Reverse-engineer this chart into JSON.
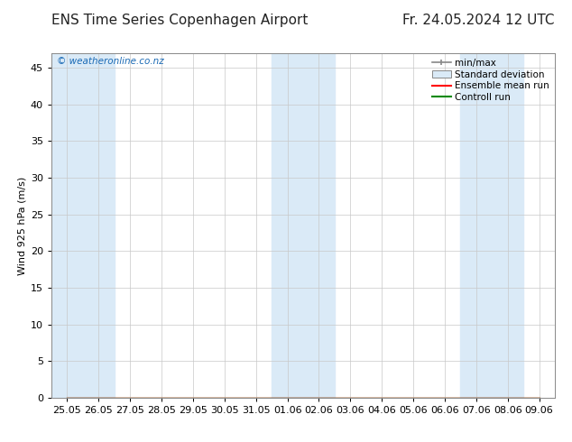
{
  "title_left": "ENS Time Series Copenhagen Airport",
  "title_right": "Fr. 24.05.2024 12 UTC",
  "ylabel": "Wind 925 hPa (m/s)",
  "watermark": "© weatheronline.co.nz",
  "ylim": [
    0,
    47
  ],
  "yticks": [
    0,
    5,
    10,
    15,
    20,
    25,
    30,
    35,
    40,
    45
  ],
  "background_color": "#ffffff",
  "plot_bg_color": "#ffffff",
  "band_color": "#daeaf7",
  "xtick_labels": [
    "25.05",
    "26.05",
    "27.05",
    "28.05",
    "29.05",
    "30.05",
    "31.05",
    "01.06",
    "02.06",
    "03.06",
    "04.06",
    "05.06",
    "06.06",
    "07.06",
    "08.06",
    "09.06"
  ],
  "shaded_indices": [
    0,
    1,
    7,
    8,
    13,
    14
  ],
  "legend_labels": [
    "min/max",
    "Standard deviation",
    "Ensemble mean run",
    "Controll run"
  ],
  "legend_colors": [
    "#888888",
    "#c8dcea",
    "#ff0000",
    "#008800"
  ],
  "watermark_color": "#1a6ab5",
  "title_fontsize": 11,
  "axis_fontsize": 8,
  "n_points": 16,
  "data_y": [
    0.0,
    0.0,
    0.0,
    0.0,
    0.0,
    0.0,
    0.0,
    0.0,
    0.0,
    0.0,
    0.0,
    0.0,
    0.0,
    0.0,
    0.0,
    0.0
  ]
}
